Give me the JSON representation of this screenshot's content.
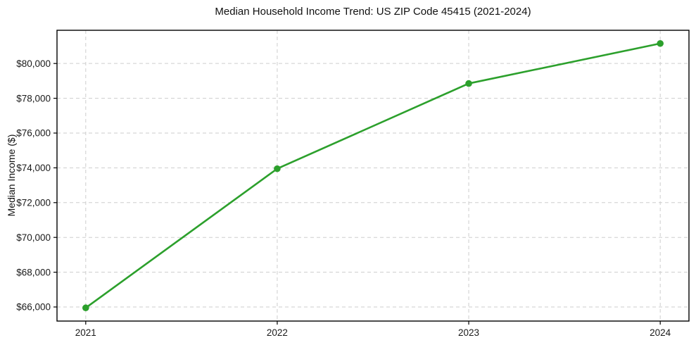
{
  "page": {
    "background": "#ffffff"
  },
  "chart_data": {
    "type": "line",
    "title": "Median Household Income Trend: US ZIP Code 45415 (2021-2024)",
    "xlabel": "",
    "ylabel": "Median Income ($)",
    "x": [
      2021,
      2022,
      2023,
      2024
    ],
    "values": [
      65950,
      73950,
      78850,
      81150
    ],
    "series_name": "median-household-income",
    "xticks": [
      2021,
      2022,
      2023,
      2024
    ],
    "yticks": [
      66000,
      68000,
      70000,
      72000,
      74000,
      76000,
      78000,
      80000
    ],
    "ytick_prefix": "$",
    "xlim": [
      2020.85,
      2024.15
    ],
    "ylim": [
      65190,
      81910
    ],
    "grid": {
      "show": true,
      "style": "dashed",
      "axes": "both"
    },
    "legend": {
      "show": false,
      "position": "none"
    },
    "marker": "circle",
    "colors": {
      "line": "#2ca02c",
      "marker": "#2ca02c",
      "grid": "#cdcdcd",
      "spine": "#000000",
      "text": "#1a1a1a",
      "background": "#ffffff"
    }
  }
}
